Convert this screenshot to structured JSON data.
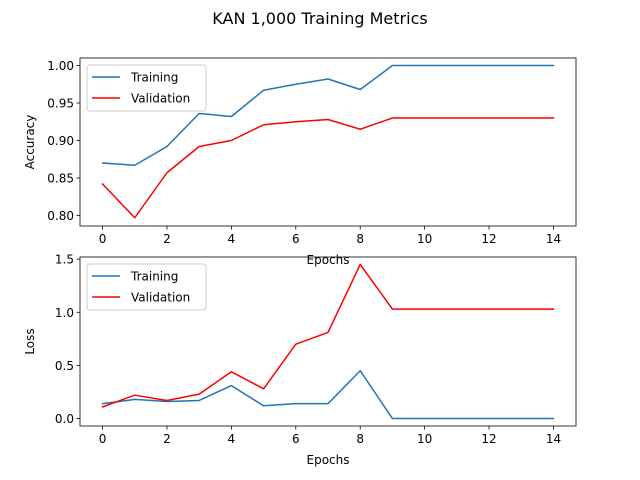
{
  "figure": {
    "title": "KAN 1,000 Training Metrics"
  },
  "chart_data": [
    {
      "type": "line",
      "xlabel": "Epochs",
      "ylabel": "Accuracy",
      "xlim": [
        -0.7,
        14.7
      ],
      "ylim": [
        0.786,
        1.01
      ],
      "xticks": [
        0,
        2,
        4,
        6,
        8,
        10,
        12,
        14
      ],
      "xtick_labels": [
        "0",
        "2",
        "4",
        "6",
        "8",
        "10",
        "12",
        "14"
      ],
      "yticks": [
        0.8,
        0.85,
        0.9,
        0.95,
        1.0
      ],
      "ytick_labels": [
        "0.80",
        "0.85",
        "0.90",
        "0.95",
        "1.00"
      ],
      "legend": "top-left",
      "grid": false,
      "x": [
        0,
        1,
        2,
        3,
        4,
        5,
        6,
        7,
        8,
        9,
        10,
        11,
        12,
        13,
        14
      ],
      "series": [
        {
          "name": "Training",
          "color": "#1f77b4",
          "values": [
            0.87,
            0.867,
            0.892,
            0.936,
            0.932,
            0.967,
            0.975,
            0.982,
            0.968,
            1.0,
            1.0,
            1.0,
            1.0,
            1.0,
            1.0
          ]
        },
        {
          "name": "Validation",
          "color": "#ff0000",
          "values": [
            0.842,
            0.797,
            0.857,
            0.892,
            0.9,
            0.921,
            0.925,
            0.928,
            0.915,
            0.93,
            0.93,
            0.93,
            0.93,
            0.93,
            0.93
          ]
        }
      ]
    },
    {
      "type": "line",
      "xlabel": "Epochs",
      "ylabel": "Loss",
      "xlim": [
        -0.7,
        14.7
      ],
      "ylim": [
        -0.07,
        1.52
      ],
      "xticks": [
        0,
        2,
        4,
        6,
        8,
        10,
        12,
        14
      ],
      "xtick_labels": [
        "0",
        "2",
        "4",
        "6",
        "8",
        "10",
        "12",
        "14"
      ],
      "yticks": [
        0.0,
        0.5,
        1.0,
        1.5
      ],
      "ytick_labels": [
        "0.0",
        "0.5",
        "1.0",
        "1.5"
      ],
      "legend": "top-left",
      "grid": false,
      "x": [
        0,
        1,
        2,
        3,
        4,
        5,
        6,
        7,
        8,
        9,
        10,
        11,
        12,
        13,
        14
      ],
      "series": [
        {
          "name": "Training",
          "color": "#1f77b4",
          "values": [
            0.14,
            0.18,
            0.16,
            0.17,
            0.31,
            0.12,
            0.14,
            0.14,
            0.45,
            0.0,
            0.0,
            0.0,
            0.0,
            0.0,
            0.0
          ]
        },
        {
          "name": "Validation",
          "color": "#ff0000",
          "values": [
            0.11,
            0.22,
            0.17,
            0.23,
            0.44,
            0.28,
            0.7,
            0.81,
            1.45,
            1.03,
            1.03,
            1.03,
            1.03,
            1.03,
            1.03
          ]
        }
      ]
    }
  ]
}
